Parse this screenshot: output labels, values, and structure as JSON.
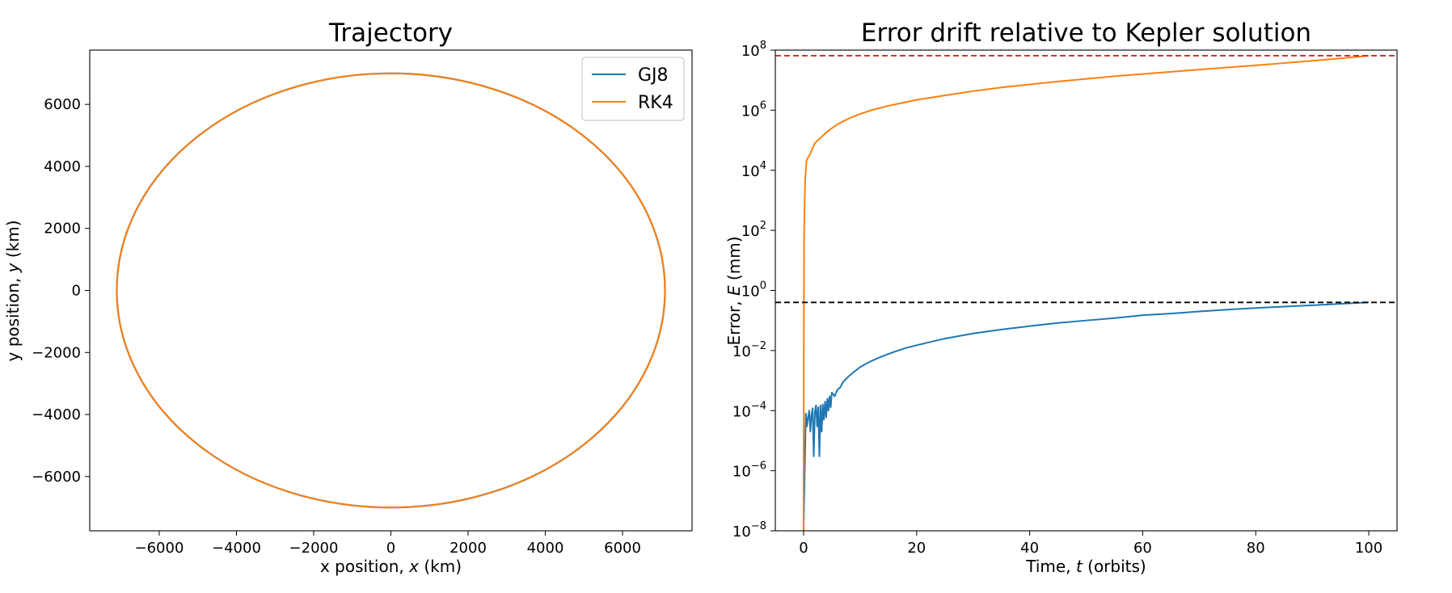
{
  "colors": {
    "gj8": "#1f77b4",
    "rk4": "#ff7f0e",
    "rk4_reference_line": "#d62728",
    "gj8_reference_line": "#000000"
  },
  "chart_data": [
    {
      "type": "line",
      "title": "Trajectory",
      "xlabel": "x position, x (km)",
      "xlabel_parts": {
        "prefix": "x position, ",
        "var": "x",
        "suffix": " (km)"
      },
      "ylabel": "y position, y (km)",
      "ylabel_parts": {
        "prefix": "y position, ",
        "var": "y",
        "suffix": " (km)"
      },
      "xlim": [
        -7800,
        7800
      ],
      "ylim": [
        -7750,
        7750
      ],
      "xticks": [
        -6000,
        -4000,
        -2000,
        0,
        2000,
        4000,
        6000
      ],
      "xtick_labels": [
        "−6000",
        "−4000",
        "−2000",
        "0",
        "2000",
        "4000",
        "6000"
      ],
      "yticks": [
        6000,
        4000,
        2000,
        0,
        -2000,
        -4000,
        -6000
      ],
      "ytick_labels": [
        "6000",
        "4000",
        "2000",
        "0",
        "−2000",
        "−4000",
        "−6000"
      ],
      "grid": false,
      "legend": {
        "position": "top-right",
        "entries": [
          "GJ8",
          "RK4"
        ]
      },
      "orbit_ellipse": {
        "center_x": 0,
        "center_y": 0,
        "semi_axis_x": 7100,
        "semi_axis_y": 7000
      },
      "series": [
        {
          "name": "GJ8",
          "color": "#1f77b4",
          "x": [
            7100,
            6150,
            3550,
            0,
            -3550,
            -6150,
            -7100,
            -6150,
            -3550,
            0,
            3550,
            6150,
            7100
          ],
          "y": [
            0,
            3500,
            6062,
            7000,
            6062,
            3500,
            0,
            -3500,
            -6062,
            -7000,
            -6062,
            -3500,
            0
          ]
        },
        {
          "name": "RK4",
          "color": "#ff7f0e",
          "x": [
            7100,
            6150,
            3550,
            0,
            -3550,
            -6150,
            -7100,
            -6150,
            -3550,
            0,
            3550,
            6150,
            7100
          ],
          "y": [
            0,
            3500,
            6062,
            7000,
            6062,
            3500,
            0,
            -3500,
            -6062,
            -7000,
            -6062,
            -3500,
            0
          ]
        }
      ]
    },
    {
      "type": "line",
      "title": "Error drift relative to Kepler solution",
      "xlabel": "Time, t (orbits)",
      "xlabel_parts": {
        "prefix": "Time, ",
        "var": "t",
        "suffix": " (orbits)"
      },
      "ylabel": "Error, E (mm)",
      "ylabel_parts": {
        "prefix": "Error, ",
        "var": "E",
        "suffix": " (mm)"
      },
      "xlim": [
        -5,
        105
      ],
      "ylim": [
        1e-08,
        100000000.0
      ],
      "yscale": "log",
      "xticks": [
        0,
        20,
        40,
        60,
        80,
        100
      ],
      "xtick_labels": [
        "0",
        "20",
        "40",
        "60",
        "80",
        "100"
      ],
      "ytick_labels": [
        {
          "base": "10",
          "exp": "8"
        },
        {
          "base": "10",
          "exp": "6"
        },
        {
          "base": "10",
          "exp": "4"
        },
        {
          "base": "10",
          "exp": "2"
        },
        {
          "base": "10",
          "exp": "0"
        },
        {
          "base": "10",
          "exp": "−2"
        },
        {
          "base": "10",
          "exp": "−4"
        },
        {
          "base": "10",
          "exp": "−6"
        },
        {
          "base": "10",
          "exp": "−8"
        }
      ],
      "ytick_exponents": [
        8,
        6,
        4,
        2,
        0,
        -2,
        -4,
        -6,
        -8
      ],
      "grid": false,
      "reference_lines": [
        {
          "y": 65000000.0,
          "color": "#d62728",
          "style": "dashed"
        },
        {
          "y": 0.4,
          "color": "#000000",
          "style": "dashed"
        }
      ],
      "series": [
        {
          "name": "GJ8",
          "color": "#1f77b4",
          "x": [
            0,
            0.2,
            0.4,
            0.6,
            0.8,
            1.0,
            1.2,
            1.4,
            1.6,
            1.8,
            2.0,
            2.2,
            2.4,
            2.6,
            2.8,
            3.0,
            3.2,
            3.4,
            3.6,
            3.8,
            4.0,
            4.2,
            4.4,
            4.6,
            4.8,
            5.0,
            5.5,
            6.0,
            6.5,
            7,
            8,
            9,
            10,
            12,
            14,
            16,
            18,
            20,
            25,
            30,
            35,
            40,
            45,
            50,
            55,
            60,
            65,
            70,
            75,
            80,
            85,
            90,
            95,
            100
          ],
          "y": [
            1e-08,
            1e-06,
            8e-05,
            3e-05,
            6e-05,
            0.0001,
            2e-05,
            7e-05,
            0.00012,
            3e-06,
            9e-05,
            0.00015,
            3e-05,
            0.00013,
            3e-06,
            0.00015,
            2e-05,
            0.00016,
            5e-05,
            0.0002,
            6e-05,
            0.00025,
            0.0001,
            0.0003,
            0.00013,
            0.0004,
            0.0003,
            0.0005,
            0.0006,
            0.0009,
            0.0014,
            0.002,
            0.0028,
            0.0045,
            0.0065,
            0.009,
            0.012,
            0.015,
            0.025,
            0.037,
            0.05,
            0.065,
            0.083,
            0.1,
            0.12,
            0.15,
            0.17,
            0.2,
            0.23,
            0.26,
            0.29,
            0.32,
            0.36,
            0.4
          ]
        },
        {
          "name": "RK4",
          "color": "#ff7f0e",
          "x": [
            0,
            0.02,
            0.05,
            0.1,
            0.2,
            0.3,
            0.5,
            0.7,
            1.0,
            1.5,
            2.0,
            2.5,
            3,
            4,
            5,
            6,
            8,
            10,
            12,
            15,
            20,
            25,
            30,
            35,
            40,
            45,
            50,
            55,
            60,
            65,
            70,
            75,
            80,
            85,
            90,
            95,
            100
          ],
          "y": [
            1e-08,
            1e-05,
            0.1,
            100,
            1000.0,
            5000.0,
            20000.0,
            25000.0,
            30000.0,
            50000.0,
            80000.0,
            100000.0,
            120000.0,
            180000.0,
            250000.0,
            340000.0,
            530000.0,
            750000.0,
            1000000.0,
            1400000.0,
            2200000.0,
            3100000.0,
            4300000.0,
            5700000.0,
            7200000.0,
            9000000.0,
            11000000.0,
            13500000.0,
            16000000.0,
            19000000.0,
            22500000.0,
            26500000.0,
            31000000.0,
            37000000.0,
            44000000.0,
            53000000.0,
            65000000.0
          ]
        }
      ]
    }
  ]
}
